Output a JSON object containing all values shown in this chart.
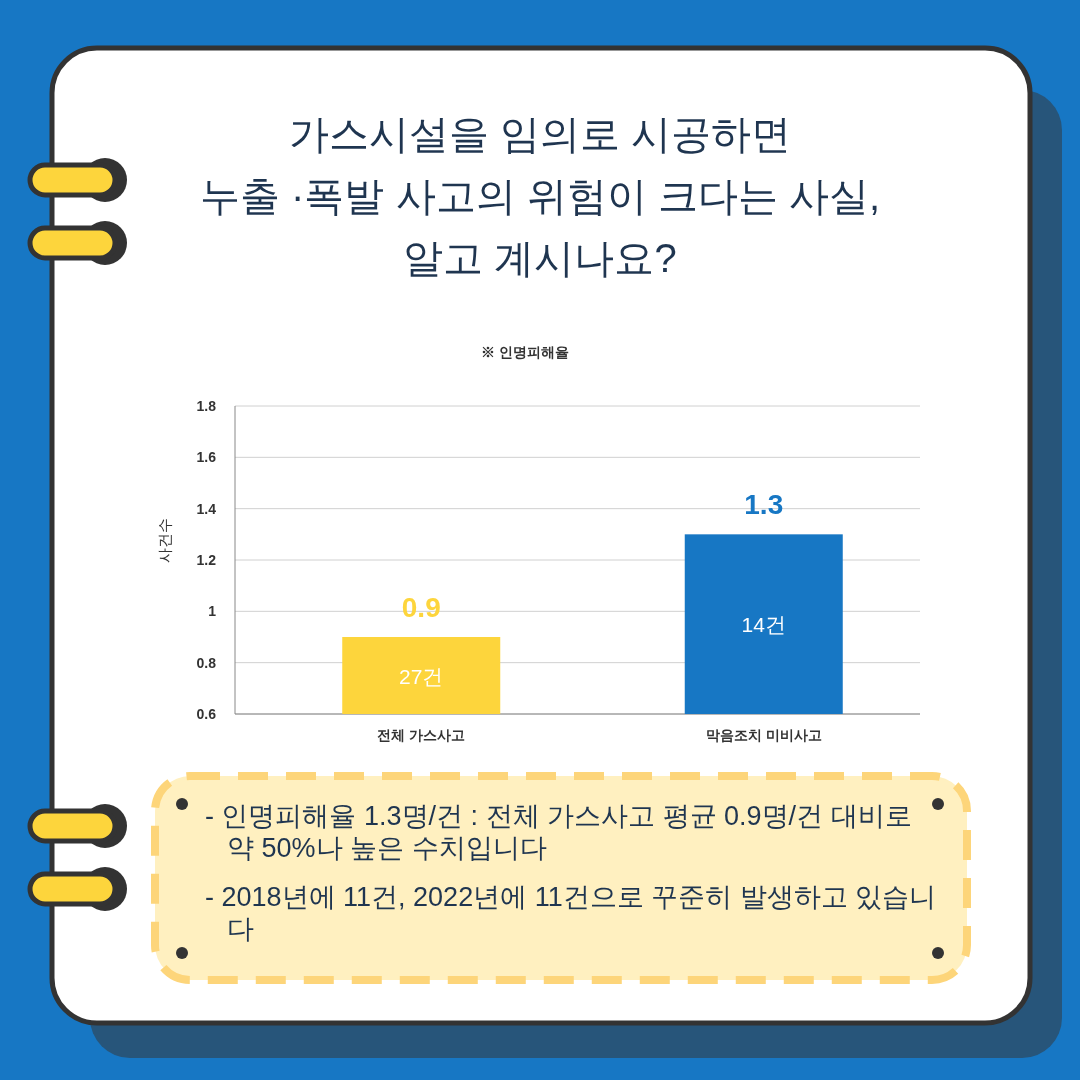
{
  "chart_data": {
    "type": "bar",
    "title": "가스시설을 임의로 시공하면\n누출 ·폭발 사고의 위험이 크다는 사실,\n알고 계시나요?",
    "subtitle": "※ 인명피해율",
    "ylabel": "사건수",
    "categories": [
      "전체 가스사고",
      "막음조치 미비사고"
    ],
    "values": [
      0.9,
      1.3
    ],
    "colors": [
      "#fdd53c",
      "#1777c4"
    ],
    "ylim": [
      0.6,
      1.8
    ],
    "yticks": [
      0.6,
      0.8,
      1,
      1.2,
      1.4,
      1.6,
      1.8
    ],
    "grid": "y",
    "data_labels": true,
    "annotations": [
      "27건",
      "14건",
      "- 인명피해율 1.3명/건 : 전체 가스사고 평균 0.9명/건 대비로 약 50%나 높은 수치입니다",
      "- 2018년에 11건, 2022년에 11건으로 꾸준히 발생하고 있습니다"
    ]
  }
}
